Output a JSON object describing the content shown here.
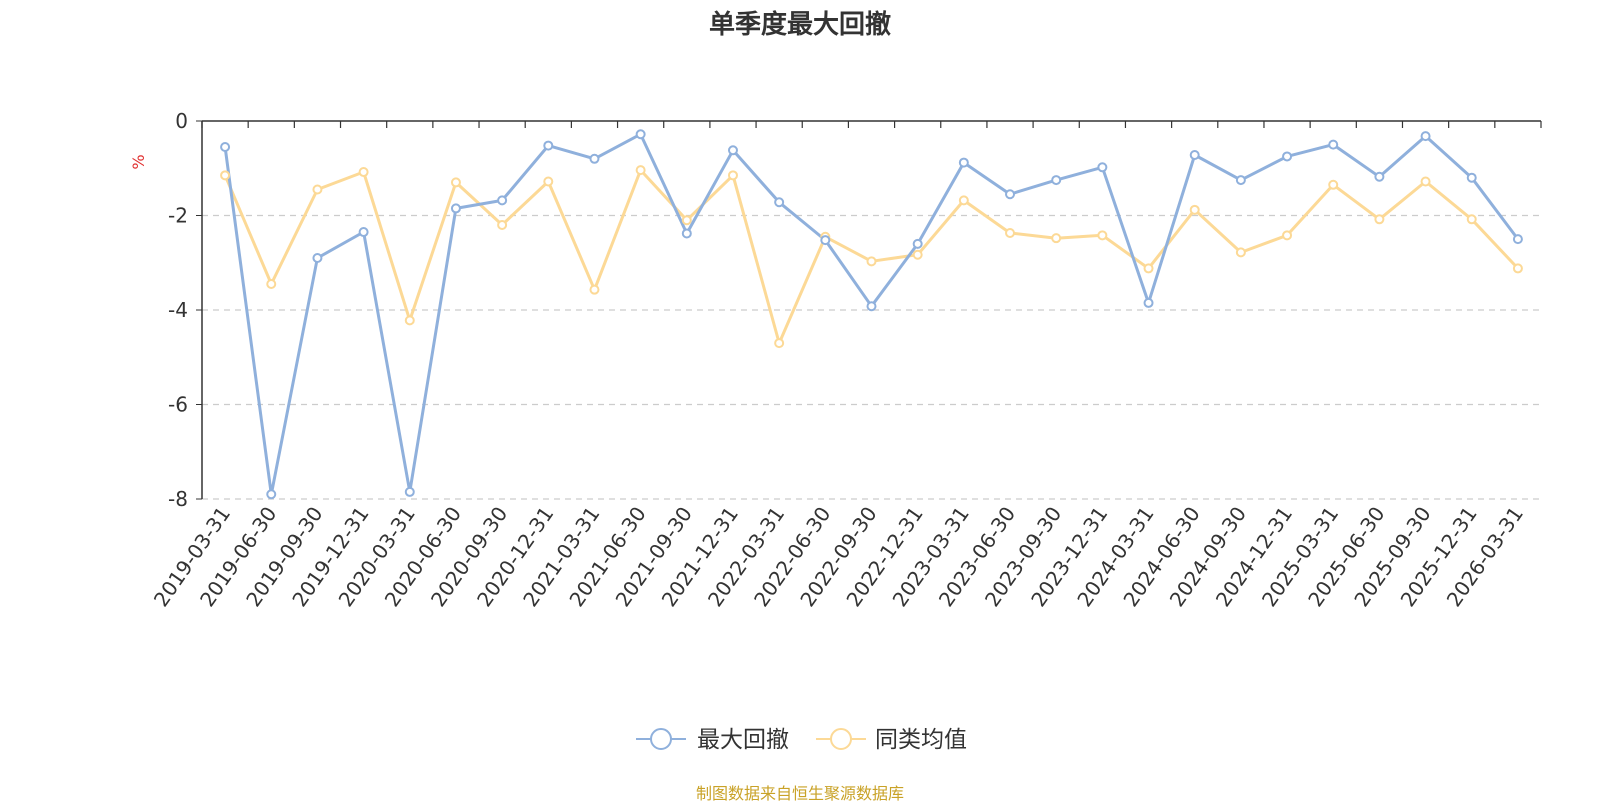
{
  "chart_data": {
    "type": "line",
    "title": "单季度最大回撤",
    "ylabel": "%",
    "xlabel": "",
    "ylim": [
      -8,
      0
    ],
    "yticks": [
      0,
      -2,
      -4,
      -6,
      -8
    ],
    "ytick_labels": [
      "0",
      "-2",
      "-4",
      "-6",
      "-8"
    ],
    "categories": [
      "2019-03-31",
      "2019-06-30",
      "2019-09-30",
      "2019-12-31",
      "2020-03-31",
      "2020-06-30",
      "2020-09-30",
      "2020-12-31",
      "2021-03-31",
      "2021-06-30",
      "2021-09-30",
      "2021-12-31",
      "2022-03-31",
      "2022-06-30",
      "2022-09-30",
      "2022-12-31",
      "2023-03-31",
      "2023-06-30",
      "2023-09-30",
      "2023-12-31",
      "2024-03-31",
      "2024-06-30",
      "2024-09-30",
      "2024-12-31",
      "2025-03-31",
      "2025-06-30",
      "2025-09-30",
      "2025-12-31",
      "2026-03-31"
    ],
    "series": [
      {
        "name": "最大回撤",
        "color": "#8fb0dc",
        "values": [
          -0.55,
          -7.9,
          -2.9,
          -2.35,
          -7.85,
          -1.85,
          -1.68,
          -0.52,
          -0.8,
          -0.28,
          -2.38,
          -0.62,
          -1.72,
          -2.52,
          -3.92,
          -2.6,
          -0.88,
          -1.55,
          -1.25,
          -0.98,
          -3.85,
          -0.72,
          -1.25,
          -0.75,
          -0.5,
          -1.18,
          -0.32,
          -1.2,
          -2.5
        ]
      },
      {
        "name": "同类均值",
        "color": "#fcd996",
        "values": [
          -1.15,
          -3.45,
          -1.45,
          -1.08,
          -4.22,
          -1.3,
          -2.2,
          -1.28,
          -3.57,
          -1.04,
          -2.1,
          -1.15,
          -4.7,
          -2.45,
          -2.97,
          -2.83,
          -1.68,
          -2.37,
          -2.48,
          -2.42,
          -3.12,
          -1.88,
          -2.78,
          -2.42,
          -1.35,
          -2.08,
          -1.28,
          -2.08,
          -3.12
        ]
      }
    ],
    "grid": true,
    "legend_position": "bottom-center"
  },
  "source_note": "制图数据来自恒生聚源数据库"
}
